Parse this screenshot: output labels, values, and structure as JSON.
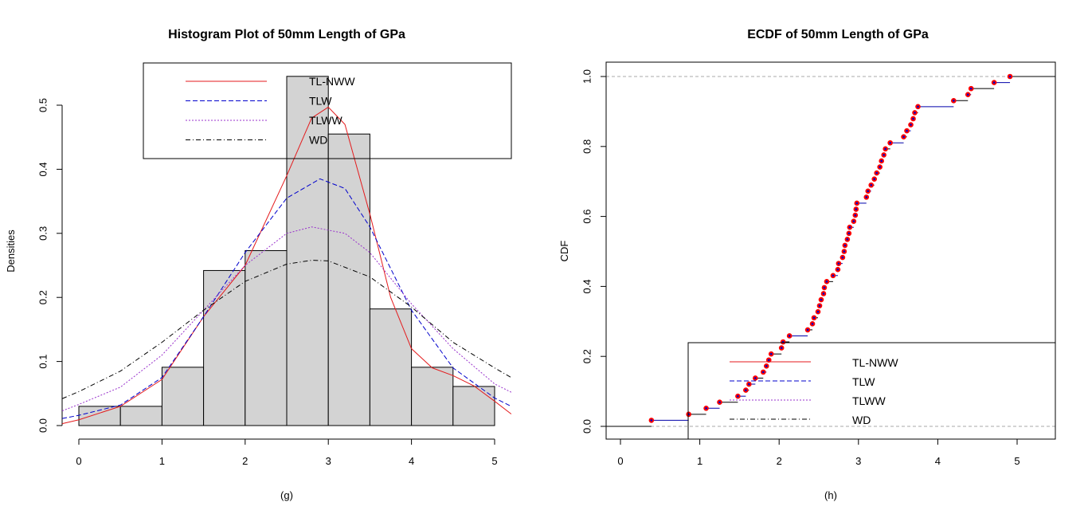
{
  "chart_data": [
    {
      "type": "histogram",
      "title": "Histogram Plot of 50mm Length of GPa",
      "xlabel": "(g)",
      "ylabel": "Densities",
      "xlim": [
        -0.2,
        5.2
      ],
      "ylim": [
        0,
        0.5
      ],
      "xticks": [
        "0",
        "1",
        "2",
        "3",
        "4",
        "5"
      ],
      "yticks": [
        "0.0",
        "0.1",
        "0.2",
        "0.3",
        "0.4",
        "0.5"
      ],
      "bins": [
        0,
        0.5,
        1,
        1.5,
        2,
        2.5,
        3,
        3.5,
        4,
        4.5,
        5
      ],
      "densities": [
        0.03,
        0.03,
        0.091,
        0.242,
        0.273,
        0.545,
        0.455,
        0.182,
        0.091,
        0.061
      ],
      "legend": {
        "placement": "top-right",
        "entries": [
          "TL-NWW",
          "TLW",
          "TLWW",
          "WD"
        ]
      },
      "series": [
        {
          "name": "TL-NWW",
          "color": "#e41a1c",
          "dash": "solid",
          "x": [
            -0.2,
            0,
            0.5,
            1,
            1.5,
            2,
            2.5,
            2.8,
            3,
            3.2,
            3.5,
            3.75,
            4,
            4.25,
            4.5,
            4.75,
            5,
            5.2
          ],
          "y": [
            0.003,
            0.009,
            0.03,
            0.072,
            0.17,
            0.25,
            0.39,
            0.48,
            0.497,
            0.47,
            0.33,
            0.2,
            0.12,
            0.09,
            0.078,
            0.062,
            0.038,
            0.018
          ]
        },
        {
          "name": "TLW",
          "color": "#0000cc",
          "dash": "dashed",
          "x": [
            -0.2,
            0,
            0.5,
            1,
            1.5,
            2,
            2.5,
            2.9,
            3.2,
            3.5,
            4,
            4.5,
            5,
            5.2
          ],
          "y": [
            0.011,
            0.016,
            0.032,
            0.075,
            0.17,
            0.27,
            0.355,
            0.385,
            0.37,
            0.31,
            0.18,
            0.09,
            0.043,
            0.03
          ]
        },
        {
          "name": "TLWW",
          "color": "#9932cc",
          "dash": "dotted",
          "x": [
            -0.2,
            0,
            0.5,
            1,
            1.5,
            2,
            2.5,
            2.8,
            3.2,
            3.5,
            4,
            4.5,
            5,
            5.2
          ],
          "y": [
            0.023,
            0.033,
            0.06,
            0.11,
            0.18,
            0.25,
            0.3,
            0.31,
            0.3,
            0.27,
            0.19,
            0.12,
            0.065,
            0.052
          ]
        },
        {
          "name": "WD",
          "color": "#000000",
          "dash": "dotdash",
          "x": [
            -0.2,
            0,
            0.5,
            1,
            1.5,
            2,
            2.5,
            2.8,
            3,
            3.5,
            4,
            4.5,
            5,
            5.2
          ],
          "y": [
            0.042,
            0.053,
            0.085,
            0.13,
            0.18,
            0.225,
            0.252,
            0.258,
            0.257,
            0.232,
            0.185,
            0.13,
            0.09,
            0.075
          ]
        }
      ]
    },
    {
      "type": "line",
      "title": "ECDF of 50mm Length of GPa",
      "xlabel": "(h)",
      "ylabel": "CDF",
      "xlim": [
        -0.2,
        5.5
      ],
      "ylim": [
        -0.04,
        1.04
      ],
      "xticks": [
        "0",
        "1",
        "2",
        "3",
        "4",
        "5"
      ],
      "yticks": [
        "0.0",
        "0.2",
        "0.4",
        "0.6",
        "0.8",
        "1.0"
      ],
      "ecdf_x": [
        0.39,
        0.86,
        1.08,
        1.25,
        1.48,
        1.58,
        1.62,
        1.7,
        1.8,
        1.84,
        1.87,
        1.9,
        2.03,
        2.05,
        2.13,
        2.36,
        2.42,
        2.44,
        2.49,
        2.51,
        2.53,
        2.56,
        2.57,
        2.6,
        2.68,
        2.74,
        2.75,
        2.8,
        2.82,
        2.83,
        2.86,
        2.88,
        2.89,
        2.94,
        2.96,
        2.97,
        2.98,
        3.1,
        3.12,
        3.16,
        3.2,
        3.23,
        3.27,
        3.29,
        3.32,
        3.34,
        3.4,
        3.57,
        3.61,
        3.66,
        3.69,
        3.71,
        3.75,
        4.2,
        4.38,
        4.42,
        4.71,
        4.91
      ],
      "point_color": "#ff0000",
      "point_center_color": "#0000cc",
      "legend": {
        "placement": "bottom-right",
        "entries": [
          "TL-NWW",
          "TLW",
          "TLWW",
          "WD"
        ]
      },
      "series": [
        {
          "name": "TL-NWW",
          "color": "#e41a1c",
          "dash": "solid"
        },
        {
          "name": "TLW",
          "color": "#0000cc",
          "dash": "dashed"
        },
        {
          "name": "TLWW",
          "color": "#9932cc",
          "dash": "dotted"
        },
        {
          "name": "WD",
          "color": "#000000",
          "dash": "dotdash"
        }
      ]
    }
  ]
}
